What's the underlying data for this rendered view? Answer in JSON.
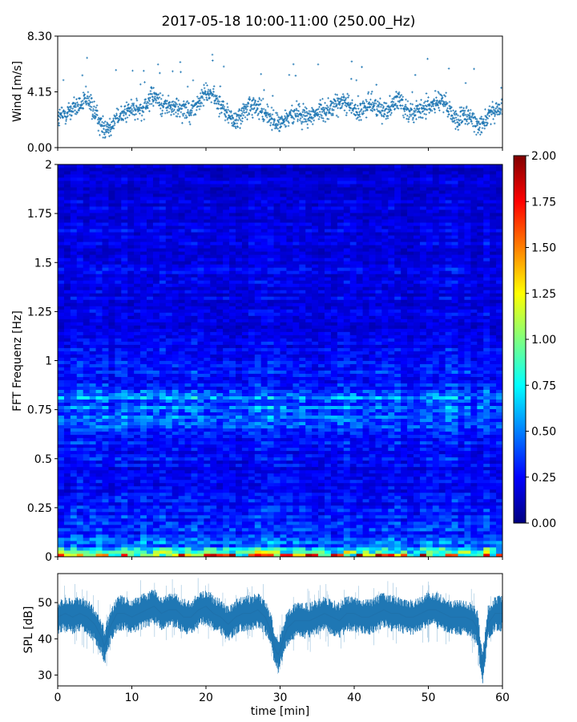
{
  "chart_data": [
    {
      "type": "scatter",
      "panel": "wind",
      "title": "2017-05-18 10:00-11:00 (250.00_Hz)",
      "ylabel": "Wind [m/s]",
      "xlim": [
        0,
        60
      ],
      "ylim": [
        0,
        8.3
      ],
      "yticks": [
        "0.00",
        "4.15",
        "8.30"
      ],
      "color": "#1f77b4",
      "series": [
        {
          "x": [
            0,
            1,
            2,
            3,
            4,
            5,
            6,
            7,
            8,
            9,
            10,
            11,
            12,
            13,
            14,
            15,
            16,
            17,
            18,
            19,
            20,
            21,
            22,
            23,
            24,
            25,
            26,
            27,
            28,
            29,
            30,
            31,
            32,
            33,
            34,
            35,
            36,
            37,
            38,
            39,
            40,
            41,
            42,
            43,
            44,
            45,
            46,
            47,
            48,
            49,
            50,
            51,
            52,
            53,
            54,
            55,
            56,
            57,
            58,
            59,
            60
          ],
          "y": [
            2.2,
            2.5,
            2.9,
            3.1,
            3.6,
            2.6,
            1.5,
            1.6,
            2.2,
            2.6,
            2.9,
            2.7,
            3.4,
            3.8,
            3.2,
            3.1,
            2.9,
            3.0,
            2.7,
            3.3,
            4.2,
            3.8,
            3.1,
            2.4,
            1.9,
            2.6,
            3.1,
            2.9,
            2.6,
            2.0,
            1.8,
            2.2,
            2.6,
            2.5,
            2.3,
            2.6,
            2.8,
            3.0,
            3.3,
            3.5,
            2.8,
            2.6,
            3.4,
            3.0,
            2.8,
            3.0,
            3.7,
            2.9,
            2.5,
            2.8,
            3.1,
            3.3,
            3.5,
            2.6,
            2.0,
            2.4,
            2.0,
            1.8,
            2.3,
            2.7,
            2.9
          ]
        }
      ]
    },
    {
      "type": "heatmap",
      "panel": "spectrogram",
      "ylabel": "FFT Frequenz [Hz]",
      "xlim": [
        0,
        60
      ],
      "ylim": [
        0,
        2
      ],
      "yticks": [
        "0",
        "0.25",
        "0.5",
        "0.75",
        "1",
        "1.25",
        "1.5",
        "1.75",
        "2"
      ],
      "colormap": "jet",
      "colorbar": {
        "range": [
          0,
          2
        ],
        "ticks": [
          "0.00",
          "0.25",
          "0.50",
          "0.75",
          "1.00",
          "1.25",
          "1.50",
          "1.75",
          "2.00"
        ]
      },
      "freq_profile": {
        "hz": [
          0,
          0.02,
          0.05,
          0.1,
          0.2,
          0.3,
          0.4,
          0.5,
          0.6,
          0.65,
          0.7,
          0.75,
          0.8,
          0.85,
          0.9,
          1.0,
          1.25,
          1.5,
          1.75,
          2.0
        ],
        "mean_level": [
          1.3,
          0.75,
          0.55,
          0.38,
          0.3,
          0.26,
          0.24,
          0.25,
          0.3,
          0.38,
          0.42,
          0.4,
          0.48,
          0.38,
          0.3,
          0.24,
          0.2,
          0.22,
          0.19,
          0.17
        ]
      }
    },
    {
      "type": "line",
      "panel": "spl",
      "xlabel": "time [min]",
      "ylabel": "SPL [dB]",
      "xlim": [
        0,
        60
      ],
      "ylim": [
        27,
        58
      ],
      "xticks": [
        "0",
        "10",
        "20",
        "30",
        "40",
        "50",
        "60"
      ],
      "yticks": [
        "30",
        "40",
        "50"
      ],
      "color": "#1f77b4",
      "series": [
        {
          "x": [
            0,
            1,
            2,
            3,
            4,
            5,
            5.5,
            6,
            6.3,
            6.6,
            7,
            8,
            9,
            10,
            11,
            12,
            13,
            14,
            15,
            16,
            17,
            18,
            19,
            20,
            21,
            22,
            23,
            24,
            25,
            26,
            27,
            28,
            28.8,
            29.3,
            29.8,
            30.3,
            31,
            32,
            33,
            34,
            35,
            36,
            37,
            38,
            39,
            40,
            41,
            42,
            43,
            44,
            45,
            46,
            47,
            48,
            49,
            50,
            51,
            52,
            53,
            54,
            55,
            56,
            56.6,
            57,
            57.3,
            57.7,
            58,
            59,
            60
          ],
          "y": [
            46,
            47,
            46,
            47,
            46,
            44,
            42,
            40,
            37.5,
            40,
            43,
            47,
            47,
            46,
            47,
            48,
            49,
            47,
            48,
            48,
            46,
            46,
            48,
            49,
            47,
            46,
            44,
            46,
            47,
            47,
            48,
            46,
            42,
            37,
            35.5,
            39,
            43,
            45,
            45,
            45,
            46,
            47,
            46,
            45,
            47,
            47,
            46,
            46,
            47,
            48,
            47,
            47,
            46,
            46,
            47,
            48,
            48,
            47,
            46,
            46,
            46,
            45,
            43,
            37,
            32,
            38,
            44,
            47,
            47
          ]
        }
      ]
    }
  ]
}
